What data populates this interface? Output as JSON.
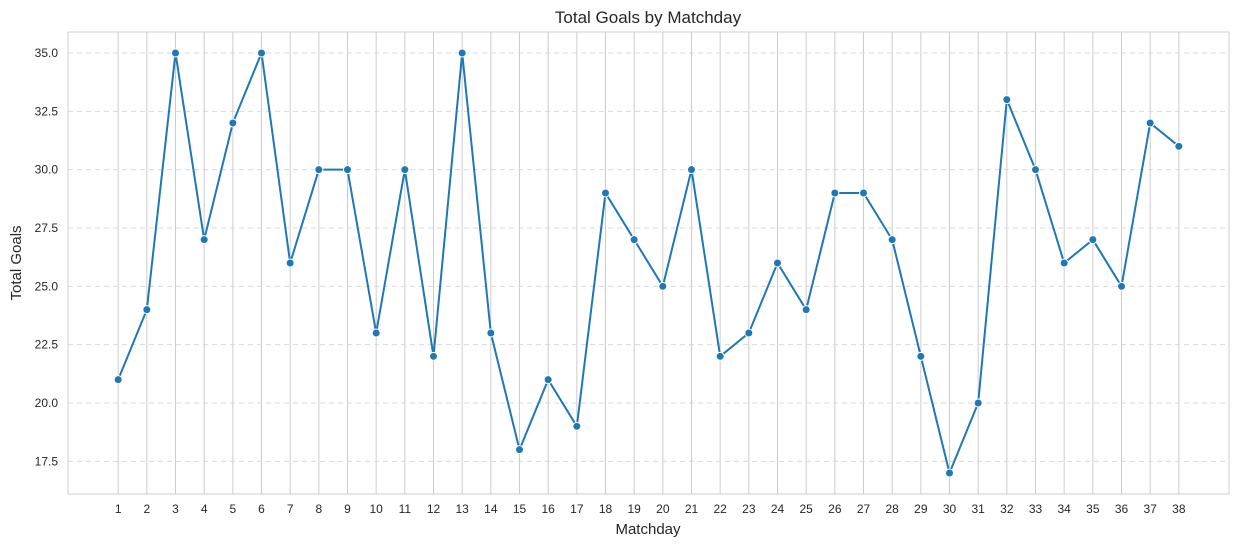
{
  "chart_data": {
    "type": "line",
    "title": "Total Goals by Matchday",
    "xlabel": "Matchday",
    "ylabel": "Total Goals",
    "x": [
      1,
      2,
      3,
      4,
      5,
      6,
      7,
      8,
      9,
      10,
      11,
      12,
      13,
      14,
      15,
      16,
      17,
      18,
      19,
      20,
      21,
      22,
      23,
      24,
      25,
      26,
      27,
      28,
      29,
      30,
      31,
      32,
      33,
      34,
      35,
      36,
      37,
      38
    ],
    "series": [
      {
        "values": [
          21,
          24,
          35,
          27,
          32,
          35,
          26,
          30,
          30,
          23,
          30,
          22,
          35,
          23,
          18,
          21,
          19,
          29,
          27,
          25,
          30,
          22,
          23,
          26,
          24,
          29,
          29,
          27,
          22,
          17,
          20,
          33,
          30,
          26,
          27,
          25,
          32,
          31
        ]
      }
    ],
    "xlim": [
      -0.75,
      39.75
    ],
    "ylim": [
      16.1,
      35.9
    ],
    "yticks": [
      "17.5",
      "20.0",
      "22.5",
      "25.0",
      "27.5",
      "30.0",
      "32.5",
      "35.0"
    ],
    "xticks": [
      "1",
      "2",
      "3",
      "4",
      "5",
      "6",
      "7",
      "8",
      "9",
      "10",
      "11",
      "12",
      "13",
      "14",
      "15",
      "16",
      "17",
      "18",
      "19",
      "20",
      "21",
      "22",
      "23",
      "24",
      "25",
      "26",
      "27",
      "28",
      "29",
      "30",
      "31",
      "32",
      "33",
      "34",
      "35",
      "36",
      "37",
      "38"
    ],
    "grid": {
      "x": "solid",
      "y": "dashed"
    },
    "line_color": "#1f77b4",
    "marker": "circle",
    "grid_color": "#cccccc",
    "axes_edge_color": "#cccccc"
  }
}
